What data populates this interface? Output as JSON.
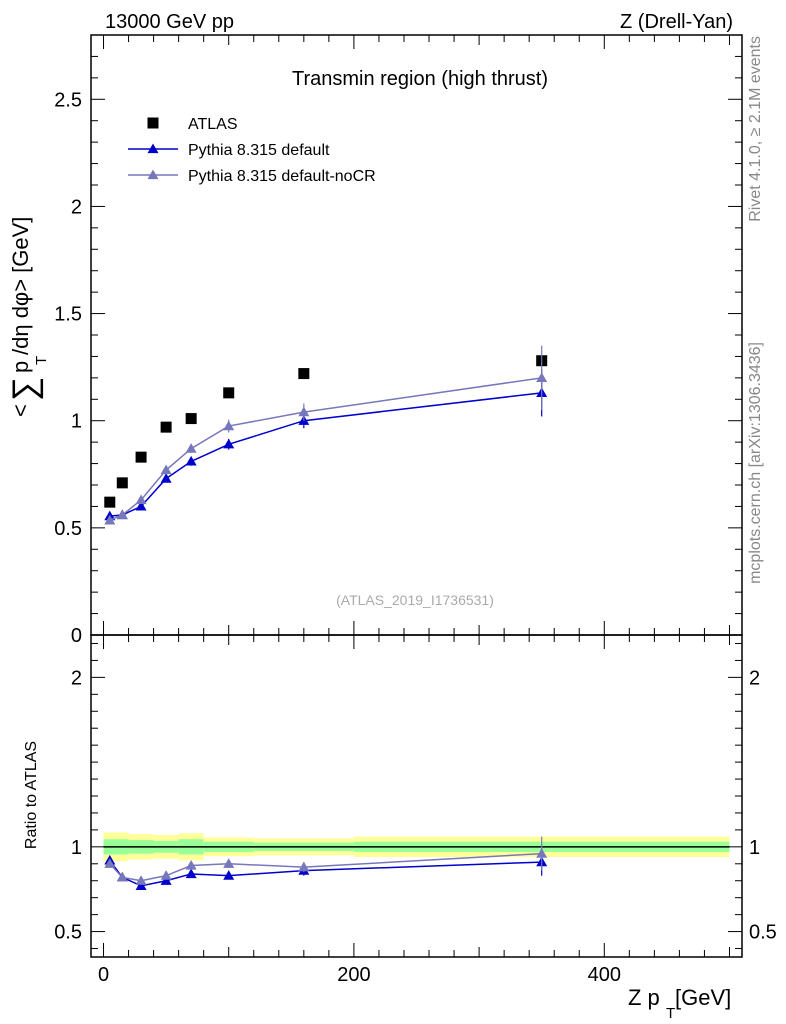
{
  "header": {
    "left": "13000 GeV pp",
    "right": "Z (Drell-Yan)"
  },
  "side_labels": {
    "rivet": "Rivet 4.1.0, ≥ 2.1M events",
    "mcplots": "mcplots.cern.ch [arXiv:1306.3436]"
  },
  "chart_data": [
    {
      "type": "scatter",
      "panel": "main",
      "title": "Transmin region (high thrust)",
      "watermark": "(ATLAS_2019_I1736531)",
      "ylabel": "<∑ p_T /dη dφ> [GeV]",
      "ylabel_parts": {
        "pre": "<",
        "sum": "∑",
        "p": "p",
        "sub": "T",
        "post": "/dη dφ> [GeV]"
      },
      "xlim": [
        -10,
        510
      ],
      "ylim": [
        0,
        2.8
      ],
      "yticks": [
        0,
        0.5,
        1,
        1.5,
        2,
        2.5
      ],
      "ytick_labels": [
        "0",
        "0.5",
        "1",
        "1.5",
        "2",
        "2.5"
      ],
      "legend_position": "top-left",
      "series": [
        {
          "name": "ATLAS",
          "marker": "square",
          "color": "#000000",
          "x": [
            5,
            15,
            30,
            50,
            70,
            100,
            160,
            350
          ],
          "y": [
            0.62,
            0.71,
            0.83,
            0.97,
            1.01,
            1.13,
            1.22,
            1.28
          ],
          "err": [
            0.01,
            0.01,
            0.01,
            0.01,
            0.01,
            0.01,
            0.01,
            0.02
          ]
        },
        {
          "name": "Pythia 8.315 default",
          "marker": "triangle",
          "color": "#0000cc",
          "x": [
            5,
            15,
            30,
            50,
            70,
            100,
            160,
            350
          ],
          "y": [
            0.555,
            0.56,
            0.6,
            0.73,
            0.81,
            0.89,
            1.0,
            1.13
          ],
          "err": [
            0.01,
            0.01,
            0.01,
            0.015,
            0.02,
            0.025,
            0.035,
            0.11
          ]
        },
        {
          "name": "Pythia 8.315 default-noCR",
          "marker": "triangle",
          "color": "#7777bb",
          "x": [
            5,
            15,
            30,
            50,
            70,
            100,
            160,
            350
          ],
          "y": [
            0.535,
            0.56,
            0.63,
            0.77,
            0.87,
            0.975,
            1.04,
            1.2
          ],
          "err": [
            0.01,
            0.01,
            0.01,
            0.015,
            0.02,
            0.03,
            0.04,
            0.15
          ]
        }
      ]
    },
    {
      "type": "scatter",
      "panel": "ratio",
      "ylabel": "Ratio to ATLAS",
      "xlabel": "Z p_T [GeV]",
      "xlabel_parts": {
        "main": "Z p",
        "sub": "T",
        "post": " [GeV]"
      },
      "xlim": [
        -10,
        510
      ],
      "ylim": [
        0.35,
        2.25
      ],
      "yticks": [
        0.5,
        1,
        2
      ],
      "ytick_labels": [
        "0.5",
        "1",
        "2"
      ],
      "xticks": [
        0,
        200,
        400
      ],
      "xtick_labels": [
        "0",
        "200",
        "400"
      ],
      "reference": 1.0,
      "bands": {
        "bin_edges": [
          0,
          10,
          20,
          40,
          60,
          80,
          120,
          200,
          500
        ],
        "yellow_half_width": [
          0.085,
          0.085,
          0.075,
          0.07,
          0.08,
          0.055,
          0.05,
          0.06
        ],
        "green_half_width": [
          0.045,
          0.045,
          0.04,
          0.035,
          0.045,
          0.03,
          0.025,
          0.03
        ]
      },
      "series": [
        {
          "name": "Pythia 8.315 default",
          "color": "#0000cc",
          "x": [
            5,
            15,
            30,
            50,
            70,
            100,
            160,
            350
          ],
          "y": [
            0.92,
            0.82,
            0.77,
            0.8,
            0.84,
            0.83,
            0.86,
            0.91
          ],
          "err": [
            0.01,
            0.01,
            0.01,
            0.015,
            0.02,
            0.02,
            0.03,
            0.08
          ]
        },
        {
          "name": "Pythia 8.315 default-noCR",
          "color": "#7777bb",
          "x": [
            5,
            15,
            30,
            50,
            70,
            100,
            160,
            350
          ],
          "y": [
            0.9,
            0.82,
            0.8,
            0.83,
            0.89,
            0.9,
            0.88,
            0.96
          ],
          "err": [
            0.01,
            0.01,
            0.01,
            0.015,
            0.02,
            0.025,
            0.03,
            0.1
          ]
        }
      ]
    }
  ]
}
